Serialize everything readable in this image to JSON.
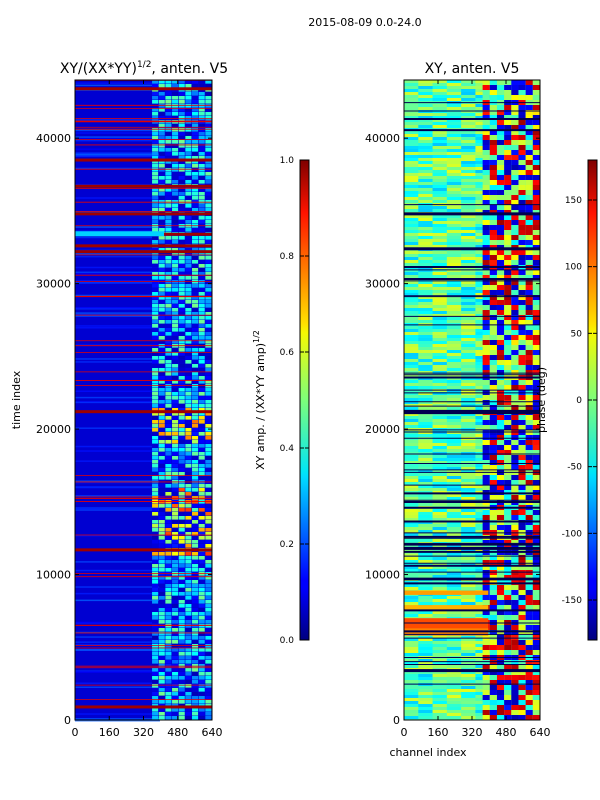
{
  "suptitle": "2015-08-09 0.0-24.0",
  "chart_data": [
    {
      "type": "heatmap",
      "title_main": "XY/(XX*YY)",
      "title_exp": "1/2",
      "title_tail": ", anten. V5",
      "xlabel": "",
      "ylabel": "time index",
      "xlim": [
        0,
        640
      ],
      "ylim": [
        0,
        44000
      ],
      "xticks": [
        "0",
        "160",
        "320",
        "480",
        "640"
      ],
      "yticks": [
        "0",
        "10000",
        "20000",
        "30000",
        "40000"
      ],
      "colorbar": {
        "label_main": "XY amp. / (XX*YY amp)",
        "label_exp": "1/2",
        "range": [
          0.0,
          1.0
        ],
        "ticks": [
          "0.0",
          "0.2",
          "0.4",
          "0.6",
          "0.8",
          "1.0"
        ],
        "colormap": "jet"
      },
      "description_values": {
        "background_level": 0.08,
        "high_band_channels": [
          360,
          640
        ],
        "saturated_rows": [
          1000,
          11800,
          21300,
          32300,
          32700,
          33500,
          34900,
          36800,
          38600,
          43500
        ]
      }
    },
    {
      "type": "heatmap",
      "title_main": "XY, anten. V5",
      "xlabel": "channel index",
      "ylabel": "",
      "xlim": [
        0,
        640
      ],
      "ylim": [
        0,
        44000
      ],
      "xticks": [
        "0",
        "160",
        "320",
        "480",
        "640"
      ],
      "yticks": [
        "0",
        "10000",
        "20000",
        "30000",
        "40000"
      ],
      "colorbar": {
        "label_main": "phase (deg)",
        "range": [
          -180,
          180
        ],
        "ticks": [
          "-150",
          "-100",
          "-50",
          "0",
          "50",
          "100",
          "150"
        ],
        "colormap": "jet"
      },
      "description_values": {
        "background_phase": -20,
        "high_band_channels": [
          400,
          640
        ]
      }
    }
  ]
}
